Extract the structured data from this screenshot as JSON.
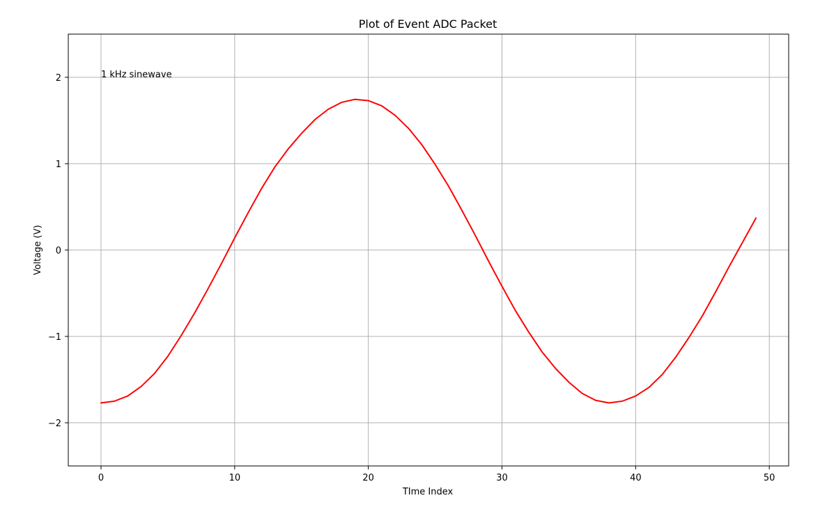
{
  "chart_data": {
    "type": "line",
    "title": "Plot of Event ADC Packet",
    "xlabel": "TIme Index",
    "ylabel": "Voltage (V)",
    "xlim": [
      -2.45,
      51.45
    ],
    "ylim": [
      -2.5,
      2.5
    ],
    "xticks": [
      0,
      10,
      20,
      30,
      40,
      50
    ],
    "yticks": [
      -2,
      -1,
      0,
      1,
      2
    ],
    "xtick_labels": [
      "0",
      "10",
      "20",
      "30",
      "40",
      "50"
    ],
    "ytick_labels": [
      "−2",
      "−1",
      "0",
      "1",
      "2"
    ],
    "grid": true,
    "annotation": {
      "text": "1 kHz sinewave",
      "x": 0,
      "y": 2
    },
    "series": [
      {
        "color": "#ff0000",
        "x": [
          0,
          1,
          2,
          3,
          4,
          5,
          6,
          7,
          8,
          9,
          10,
          11,
          12,
          13,
          14,
          15,
          16,
          17,
          18,
          19,
          20,
          21,
          22,
          23,
          24,
          25,
          26,
          27,
          28,
          29,
          30,
          31,
          32,
          33,
          34,
          35,
          36,
          37,
          38,
          39,
          40,
          41,
          42,
          43,
          44,
          45,
          46,
          47,
          48,
          49
        ],
        "y": [
          -1.77,
          -1.75,
          -1.69,
          -1.58,
          -1.43,
          -1.23,
          -0.99,
          -0.73,
          -0.45,
          -0.16,
          0.14,
          0.43,
          0.71,
          0.96,
          1.17,
          1.35,
          1.51,
          1.63,
          1.71,
          1.745,
          1.73,
          1.67,
          1.56,
          1.41,
          1.22,
          0.99,
          0.74,
          0.46,
          0.17,
          -0.13,
          -0.42,
          -0.7,
          -0.95,
          -1.18,
          -1.37,
          -1.53,
          -1.66,
          -1.74,
          -1.77,
          -1.75,
          -1.69,
          -1.59,
          -1.44,
          -1.24,
          -1.01,
          -0.76,
          -0.48,
          -0.19,
          0.09,
          0.37
        ]
      }
    ]
  }
}
